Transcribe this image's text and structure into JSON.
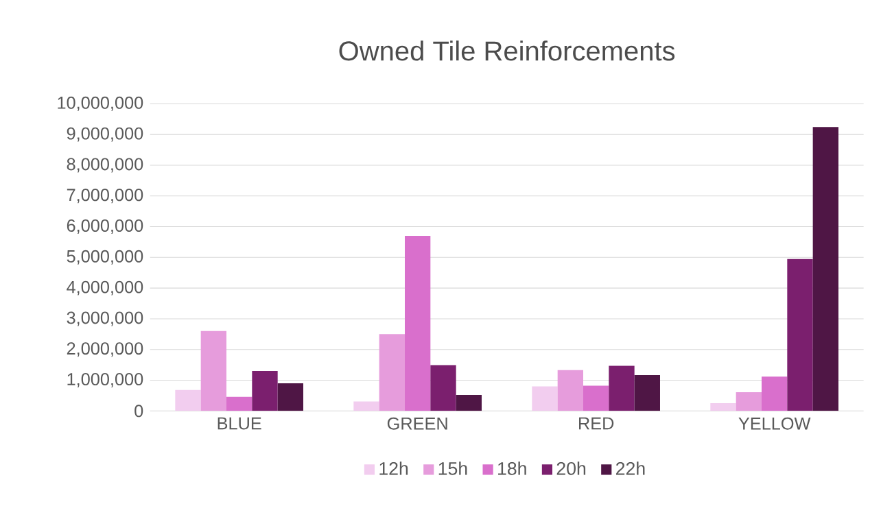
{
  "chart_data": {
    "type": "bar",
    "title": "Owned Tile Reinforcements",
    "categories": [
      "BLUE",
      "GREEN",
      "RED",
      "YELLOW"
    ],
    "series": [
      {
        "name": "12h",
        "color": "#f2cdef",
        "values": [
          680000,
          310000,
          800000,
          250000
        ]
      },
      {
        "name": "15h",
        "color": "#e69cdc",
        "values": [
          2600000,
          2500000,
          1330000,
          610000
        ]
      },
      {
        "name": "18h",
        "color": "#d96fcc",
        "values": [
          460000,
          5700000,
          820000,
          1120000
        ]
      },
      {
        "name": "20h",
        "color": "#7b1f6e",
        "values": [
          1300000,
          1490000,
          1470000,
          4950000
        ]
      },
      {
        "name": "22h",
        "color": "#4f1645",
        "values": [
          900000,
          520000,
          1170000,
          9240000
        ]
      }
    ],
    "ylim": [
      0,
      10000000
    ],
    "yticks": [
      0,
      {
        "value": 1000000,
        "label": "1,000,000"
      },
      {
        "value": 2000000,
        "label": "2,000,000"
      },
      {
        "value": 3000000,
        "label": "3,000,000"
      },
      {
        "value": 4000000,
        "label": "4,000,000"
      },
      {
        "value": 5000000,
        "label": "5,000,000"
      },
      {
        "value": 6000000,
        "label": "6,000,000"
      },
      {
        "value": 7000000,
        "label": "7,000,000"
      },
      {
        "value": 8000000,
        "label": "8,000,000"
      },
      {
        "value": 9000000,
        "label": "9,000,000"
      },
      {
        "value": 10000000,
        "label": "10,000,000"
      }
    ],
    "grid": "y",
    "legend": "bottom"
  }
}
